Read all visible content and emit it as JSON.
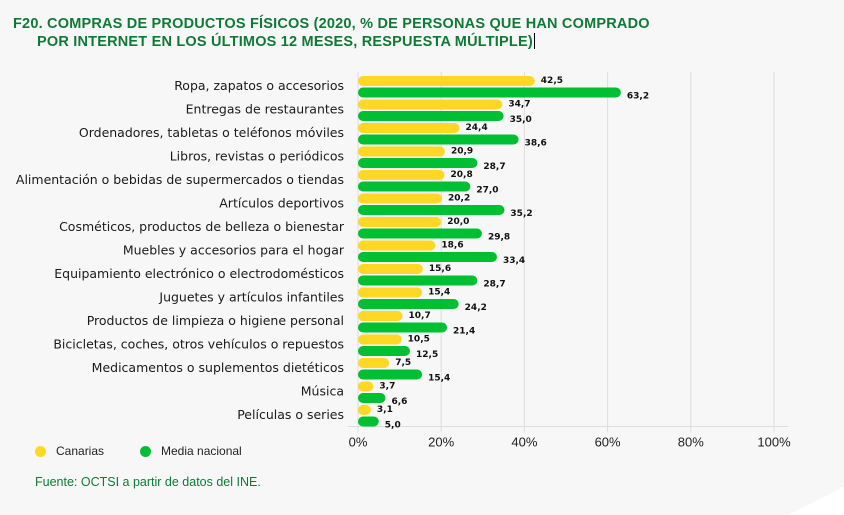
{
  "title": {
    "line1": "F20. COMPRAS DE PRODUCTOS FÍSICOS (2020, % DE PERSONAS QUE HAN COMPRADO",
    "line2": "POR INTERNET EN LOS ÚLTIMOS 12 MESES, RESPUESTA MÚLTIPLE)"
  },
  "source": "Fuente: OCTSI a partir de datos del INE.",
  "colors": {
    "canarias": "#ffd724",
    "media_nacional": "#00bf32",
    "title": "#0f7a35",
    "grid": "#dddddd"
  },
  "chart_data": {
    "type": "bar",
    "orientation": "horizontal",
    "title": "F20. Compras de productos físicos (2020, % de personas que han comprado por internet en los últimos 12 meses, respuesta múltiple)",
    "xlabel": "",
    "ylabel": "",
    "xlim": [
      0,
      100
    ],
    "x_ticks": [
      "0%",
      "20%",
      "40%",
      "60%",
      "80%",
      "100%"
    ],
    "x_tick_values": [
      0,
      20,
      40,
      60,
      80,
      100
    ],
    "grid": true,
    "legend_position": "bottom-left",
    "categories": [
      "Ropa, zapatos o accesorios",
      "Entregas de restaurantes",
      "Ordenadores, tabletas o teléfonos móviles",
      "Libros, revistas o periódicos",
      "Alimentación o bebidas de supermercados o tiendas",
      "Artículos deportivos",
      "Cosméticos, productos de belleza o bienestar",
      "Muebles y accesorios para el hogar",
      "Equipamiento electrónico o electrodomésticos",
      "Juguetes y artículos infantiles",
      "Productos de limpieza o higiene personal",
      "Bicicletas, coches, otros vehículos o repuestos",
      "Medicamentos o suplementos dietéticos",
      "Música",
      "Películas o series"
    ],
    "series": [
      {
        "name": "Canarias",
        "values": [
          42.5,
          34.7,
          24.4,
          20.9,
          20.8,
          20.2,
          20.0,
          18.6,
          15.6,
          15.4,
          10.7,
          10.5,
          7.5,
          3.7,
          3.1
        ],
        "labels": [
          "42,5",
          "34,7",
          "24,4",
          "20,9",
          "20,8",
          "20,2",
          "20,0",
          "18,6",
          "15,6",
          "15,4",
          "10,7",
          "10,5",
          "7,5",
          "3,7",
          "3,1"
        ]
      },
      {
        "name": "Media nacional",
        "values": [
          63.2,
          35.0,
          38.6,
          28.7,
          27.0,
          35.2,
          29.8,
          33.4,
          28.7,
          24.2,
          21.4,
          12.5,
          15.4,
          6.6,
          5.0
        ],
        "labels": [
          "63,2",
          "35,0",
          "38,6",
          "28,7",
          "27,0",
          "35,2",
          "29,8",
          "33,4",
          "28,7",
          "24,2",
          "21,4",
          "12,5",
          "15,4",
          "6,6",
          "5,0"
        ]
      }
    ]
  }
}
